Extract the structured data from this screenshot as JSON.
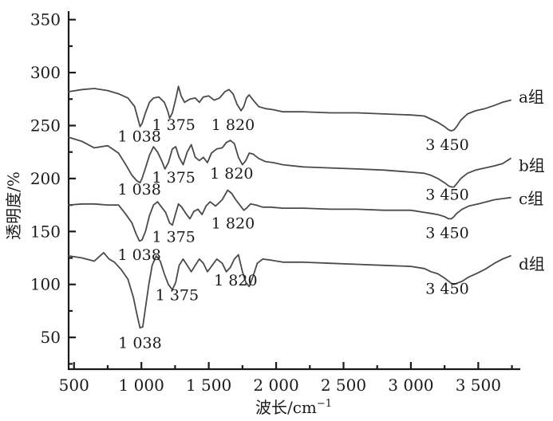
{
  "chart_data": {
    "type": "line",
    "xlabel": "波长/cm",
    "xlabel_sup": "−1",
    "ylabel": "透明度/%",
    "xlim": [
      460,
      3800
    ],
    "ylim": [
      20,
      355
    ],
    "xticks": [
      500,
      1000,
      1500,
      2000,
      2500,
      3000,
      3500
    ],
    "xtick_labels": [
      "500",
      "1 000",
      "1 500",
      "2 000",
      "2 500",
      "3 000",
      "3 500"
    ],
    "yticks": [
      50,
      100,
      150,
      200,
      250,
      300,
      350
    ],
    "ytick_labels": [
      "50",
      "100",
      "150",
      "200",
      "250",
      "300",
      "350"
    ],
    "grid": false,
    "series": [
      {
        "name": "a组",
        "label_pos": [
          3880,
          272
        ],
        "x": [
          460,
          560,
          650,
          750,
          830,
          900,
          950,
          975,
          990,
          1005,
          1030,
          1060,
          1090,
          1130,
          1170,
          1195,
          1210,
          1230,
          1255,
          1275,
          1295,
          1320,
          1360,
          1400,
          1430,
          1460,
          1500,
          1540,
          1580,
          1620,
          1650,
          1680,
          1710,
          1740,
          1760,
          1780,
          1800,
          1830,
          1870,
          1920,
          1980,
          2050,
          2200,
          2400,
          2600,
          2800,
          3000,
          3100,
          3150,
          3200,
          3250,
          3280,
          3300,
          3320,
          3340,
          3370,
          3420,
          3480,
          3550,
          3620,
          3680,
          3740
        ],
        "y": [
          282,
          284,
          285,
          283,
          280,
          276,
          268,
          256,
          249,
          252,
          262,
          272,
          276,
          277,
          272,
          264,
          257,
          262,
          275,
          287,
          278,
          272,
          275,
          276,
          272,
          277,
          278,
          274,
          276,
          282,
          284,
          280,
          270,
          264,
          268,
          276,
          279,
          274,
          268,
          266,
          265,
          263,
          263,
          262,
          262,
          261,
          260,
          259,
          256,
          253,
          249,
          246,
          245,
          246,
          249,
          255,
          261,
          264,
          266,
          269,
          272,
          274
        ],
        "peaks": [
          {
            "x": 1000,
            "label": "1 038",
            "lx": 985,
            "ly": 235
          },
          {
            "x": 1210,
            "label": "1 375",
            "lx": 1240,
            "ly": 246
          },
          {
            "x": 1775,
            "label": "1 820",
            "lx": 1680,
            "ly": 246
          },
          {
            "x": 3300,
            "label": "3 450",
            "lx": 3270,
            "ly": 227
          }
        ]
      },
      {
        "name": "b组",
        "label_pos": [
          3880,
          207
        ],
        "x": [
          460,
          560,
          650,
          750,
          830,
          880,
          930,
          965,
          990,
          1005,
          1030,
          1060,
          1090,
          1120,
          1150,
          1175,
          1200,
          1230,
          1255,
          1280,
          1310,
          1340,
          1370,
          1400,
          1430,
          1460,
          1490,
          1520,
          1560,
          1600,
          1630,
          1660,
          1690,
          1720,
          1750,
          1775,
          1800,
          1830,
          1870,
          1920,
          1980,
          2050,
          2200,
          2400,
          2600,
          2800,
          3000,
          3100,
          3150,
          3200,
          3250,
          3280,
          3300,
          3320,
          3340,
          3370,
          3420,
          3480,
          3550,
          3620,
          3680,
          3740
        ],
        "y": [
          239,
          235,
          229,
          231,
          224,
          214,
          203,
          198,
          196,
          200,
          210,
          222,
          230,
          225,
          217,
          209,
          215,
          228,
          230,
          220,
          213,
          225,
          232,
          220,
          217,
          220,
          215,
          224,
          228,
          229,
          234,
          236,
          233,
          220,
          213,
          217,
          224,
          223,
          219,
          216,
          215,
          213,
          211,
          210,
          209,
          208,
          206,
          205,
          203,
          200,
          196,
          193,
          192,
          192,
          195,
          200,
          205,
          208,
          210,
          212,
          214,
          219
        ],
        "peaks": [
          {
            "x": 1000,
            "label": "1 038",
            "lx": 985,
            "ly": 185
          },
          {
            "x": 1210,
            "label": "1 375",
            "lx": 1240,
            "ly": 196
          },
          {
            "x": 1770,
            "label": "1 820",
            "lx": 1670,
            "ly": 200
          },
          {
            "x": 3300,
            "label": "3 450",
            "lx": 3270,
            "ly": 180
          }
        ]
      },
      {
        "name": "c组",
        "label_pos": [
          3880,
          176
        ],
        "x": [
          460,
          560,
          650,
          750,
          830,
          880,
          930,
          960,
          985,
          1005,
          1030,
          1060,
          1090,
          1120,
          1150,
          1180,
          1210,
          1230,
          1250,
          1275,
          1300,
          1330,
          1360,
          1390,
          1420,
          1450,
          1480,
          1510,
          1550,
          1600,
          1640,
          1670,
          1700,
          1730,
          1760,
          1780,
          1810,
          1850,
          1900,
          1960,
          2050,
          2200,
          2400,
          2600,
          2800,
          3000,
          3100,
          3150,
          3200,
          3250,
          3280,
          3300,
          3320,
          3340,
          3380,
          3430,
          3500,
          3560,
          3620,
          3680,
          3740
        ],
        "y": [
          175,
          176,
          176,
          175,
          175,
          167,
          158,
          148,
          141,
          142,
          150,
          165,
          175,
          178,
          173,
          168,
          158,
          156,
          165,
          176,
          173,
          167,
          162,
          169,
          171,
          166,
          174,
          178,
          174,
          180,
          189,
          186,
          180,
          175,
          170,
          172,
          176,
          175,
          173,
          173,
          172,
          172,
          171,
          171,
          170,
          170,
          168,
          167,
          166,
          164,
          162,
          162,
          164,
          167,
          171,
          174,
          176,
          178,
          180,
          181,
          182
        ],
        "peaks": [
          {
            "x": 1000,
            "label": "1 038",
            "lx": 985,
            "ly": 123
          },
          {
            "x": 1210,
            "label": "1 375",
            "lx": 1240,
            "ly": 140
          },
          {
            "x": 1760,
            "label": "1 820",
            "lx": 1680,
            "ly": 153
          },
          {
            "x": 3300,
            "label": "3 450",
            "lx": 3270,
            "ly": 144
          }
        ]
      },
      {
        "name": "d组",
        "label_pos": [
          3880,
          114
        ],
        "x": [
          460,
          560,
          650,
          720,
          760,
          800,
          850,
          900,
          940,
          970,
          990,
          1010,
          1030,
          1055,
          1080,
          1110,
          1140,
          1170,
          1200,
          1230,
          1255,
          1280,
          1310,
          1340,
          1370,
          1400,
          1430,
          1460,
          1490,
          1520,
          1560,
          1600,
          1630,
          1660,
          1690,
          1720,
          1750,
          1775,
          1800,
          1830,
          1860,
          1900,
          1960,
          2050,
          2200,
          2400,
          2600,
          2800,
          3000,
          3100,
          3150,
          3200,
          3250,
          3280,
          3300,
          3320,
          3340,
          3380,
          3430,
          3500,
          3560,
          3620,
          3680,
          3740
        ],
        "y": [
          127,
          125,
          122,
          130,
          124,
          121,
          114,
          105,
          88,
          70,
          59,
          60,
          78,
          100,
          118,
          127,
          122,
          110,
          100,
          95,
          102,
          118,
          124,
          118,
          112,
          118,
          124,
          120,
          112,
          117,
          124,
          120,
          112,
          116,
          124,
          128,
          112,
          102,
          98,
          108,
          120,
          124,
          123,
          121,
          121,
          120,
          119,
          118,
          117,
          115,
          112,
          110,
          106,
          103,
          101,
          100,
          101,
          103,
          107,
          111,
          115,
          120,
          124,
          127
        ],
        "peaks": [
          {
            "x": 1005,
            "label": "1 038",
            "lx": 990,
            "ly": 40
          },
          {
            "x": 1230,
            "label": "1 375",
            "lx": 1265,
            "ly": 85
          },
          {
            "x": 1800,
            "label": "1 820",
            "lx": 1700,
            "ly": 99
          },
          {
            "x": 3300,
            "label": "3 450",
            "lx": 3270,
            "ly": 91
          }
        ]
      }
    ]
  }
}
